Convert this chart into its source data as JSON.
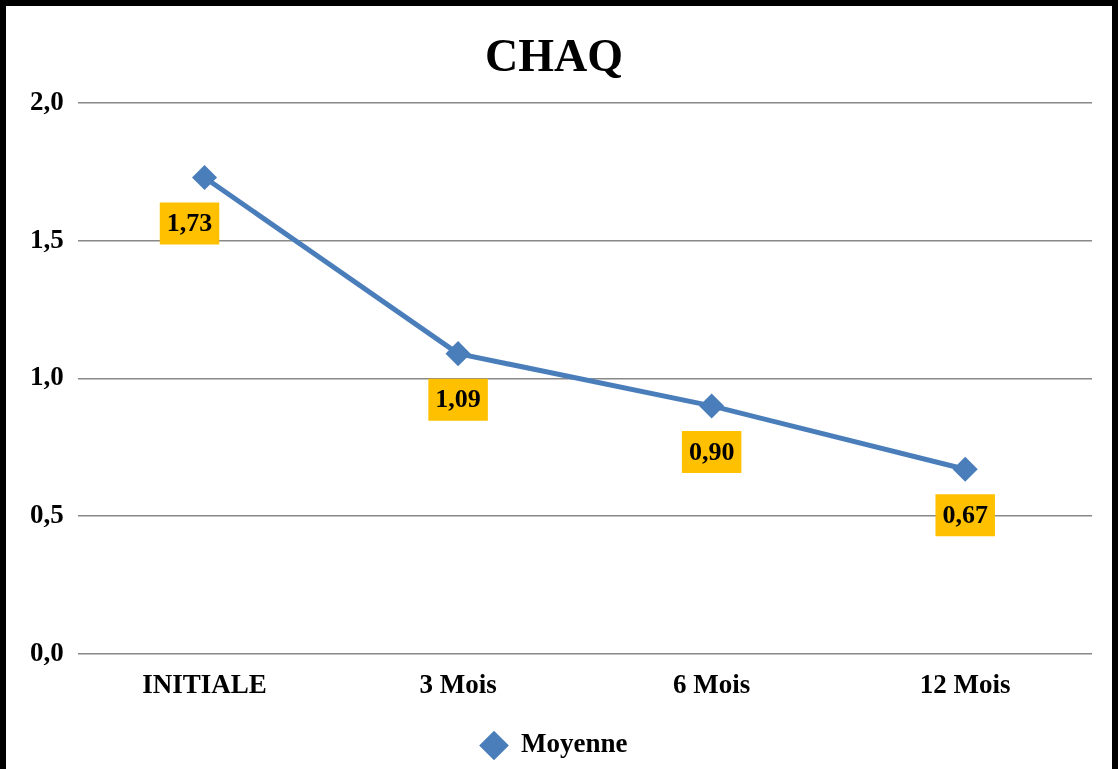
{
  "chart_data": {
    "type": "line",
    "title": "CHAQ",
    "categories": [
      "INITIALE",
      "3 Mois",
      "6 Mois",
      "12 Mois"
    ],
    "series": [
      {
        "name": "Moyenne",
        "color": "#4a7ebb",
        "values": [
          1.73,
          1.09,
          0.9,
          0.67
        ],
        "value_labels": [
          "1,73",
          "1,09",
          "0,90",
          "0,67"
        ]
      }
    ],
    "ylim": [
      0,
      2
    ],
    "yticks": [
      {
        "value": 0,
        "label": "0,0"
      },
      {
        "value": 0.5,
        "label": "0,5"
      },
      {
        "value": 1,
        "label": "1,0"
      },
      {
        "value": 1.5,
        "label": "1,5"
      },
      {
        "value": 2,
        "label": "2,0"
      }
    ],
    "grid": "y",
    "legend": "bottom",
    "marker": "diamond",
    "line_style": "solid"
  }
}
